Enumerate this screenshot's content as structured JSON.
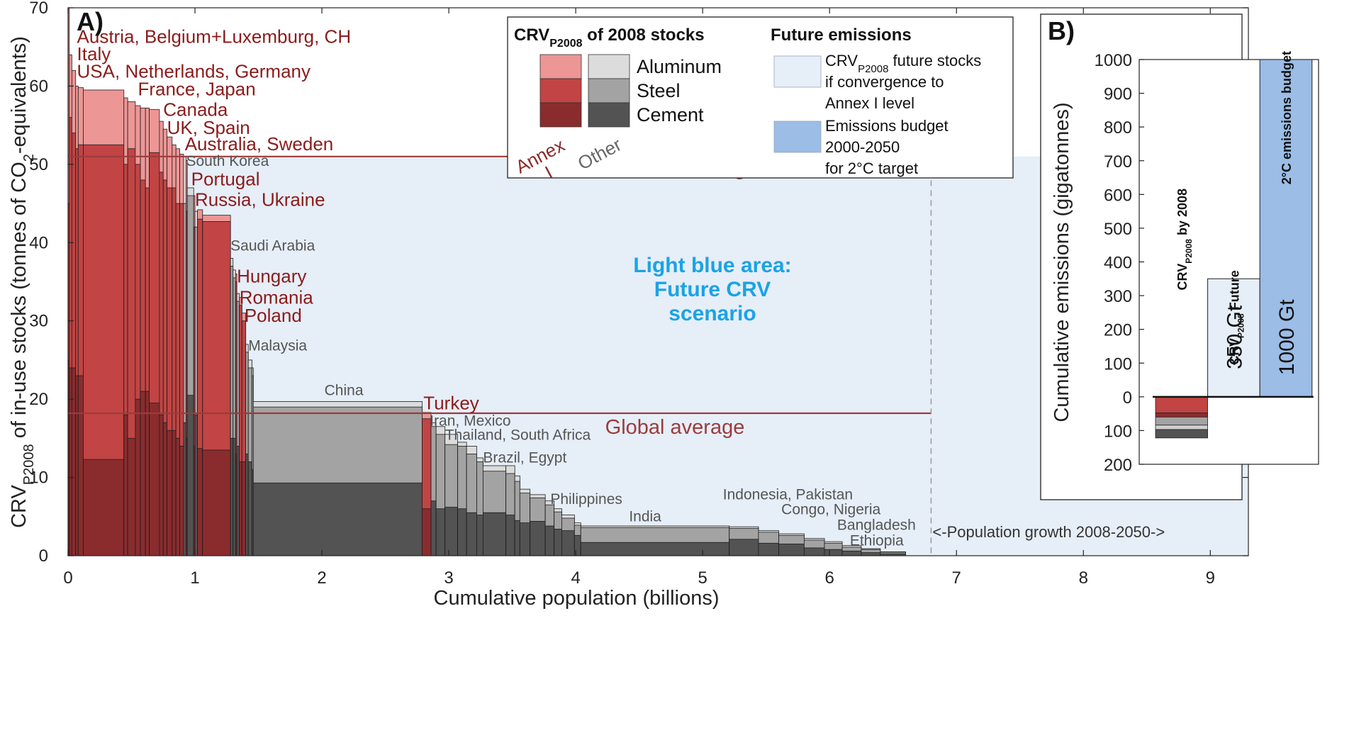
{
  "chart_data": [
    {
      "panel_label": "A)",
      "type": "bar",
      "subtype": "variable-width stacked bars (cumulative population on x)",
      "xlabel": "Cumulative population (billions)",
      "ylabel_parts": [
        "CRV",
        "P2008",
        " of in-use stocks (tonnes of CO",
        "2",
        "-equivalents)"
      ],
      "xlim": [
        0,
        9.3
      ],
      "ylim": [
        0,
        70
      ],
      "xticks": [
        0,
        1,
        2,
        3,
        4,
        5,
        6,
        7,
        8,
        9
      ],
      "yticks": [
        0,
        10,
        20,
        30,
        40,
        50,
        60,
        70
      ],
      "grid": false,
      "legend": {
        "position": "top-right",
        "left_title_parts": [
          "CRV",
          "P2008",
          " of 2008 stocks"
        ],
        "right_title": "Future emissions",
        "materials": [
          "Aluminum",
          "Steel",
          "Cement"
        ],
        "group_labels": [
          {
            "text": "Annex I",
            "lines": [
              "Annex",
              "I"
            ],
            "color": "#8b2a2a"
          },
          {
            "text": "Other",
            "lines": [
              "Other"
            ],
            "color": "#666666"
          }
        ],
        "future_items": [
          {
            "lines_parts": [
              [
                "CRV",
                "P2008",
                " future stocks"
              ],
              [
                "if convergence to"
              ],
              [
                "Annex I level"
              ]
            ],
            "color": "#e6eef8"
          },
          {
            "lines_parts": [
              [
                "Emissions budget"
              ],
              [
                "2000-2050"
              ],
              [
                "for 2°C target"
              ]
            ],
            "color": "#9bbde6"
          }
        ]
      },
      "colors": {
        "annex_aluminum": "#ed9696",
        "annex_steel": "#c24444",
        "annex_cement": "#8a2c2e",
        "other_aluminum": "#dcdcdc",
        "other_steel": "#a3a3a3",
        "other_cement": "#535353",
        "future_area": "#e6eef8",
        "budget": "#9bbde6",
        "average_line": "#9c3b3b",
        "annex_label": "#8b1c1c",
        "other_label": "#555555",
        "scenario_text": "#1aa3e6"
      },
      "reference_lines": [
        {
          "name": "Annex I average",
          "y": 51
        },
        {
          "name": "Global average",
          "y": 18.2
        }
      ],
      "future_area": {
        "x": [
          0,
          9.3
        ],
        "y": [
          0,
          51
        ]
      },
      "future_area_label": {
        "lines": [
          "Light blue area:",
          "Future CRV",
          "scenario"
        ]
      },
      "population_growth_marker": {
        "x": 6.8,
        "label": "<-Population growth 2008-2050->"
      },
      "country_bars": [
        {
          "group": "annex",
          "x0": 0.0,
          "x1": 0.01,
          "aluminum": 70,
          "steel": 45,
          "cement": 25
        },
        {
          "group": "annex",
          "x0": 0.01,
          "x1": 0.03,
          "aluminum": 64,
          "steel": 56,
          "cement": 24
        },
        {
          "group": "annex",
          "x0": 0.03,
          "x1": 0.06,
          "aluminum": 62,
          "steel": 54,
          "cement": 24
        },
        {
          "group": "annex",
          "x0": 0.06,
          "x1": 0.08,
          "aluminum": 60,
          "steel": 52,
          "cement": 23
        },
        {
          "group": "annex",
          "x0": 0.08,
          "x1": 0.12,
          "aluminum": 59.8,
          "steel": 52.5,
          "cement": 23
        },
        {
          "group": "annex",
          "x0": 0.12,
          "x1": 0.44,
          "aluminum": 59.5,
          "steel": 52.5,
          "cement": 12.3
        },
        {
          "group": "annex",
          "x0": 0.44,
          "x1": 0.47,
          "aluminum": 58.5,
          "steel": 50,
          "cement": 18
        },
        {
          "group": "annex",
          "x0": 0.47,
          "x1": 0.53,
          "aluminum": 58,
          "steel": 52,
          "cement": 15
        },
        {
          "group": "annex",
          "x0": 0.53,
          "x1": 0.57,
          "aluminum": 57.5,
          "steel": 50,
          "cement": 20
        },
        {
          "group": "annex",
          "x0": 0.57,
          "x1": 0.61,
          "aluminum": 57.2,
          "steel": 48,
          "cement": 21
        },
        {
          "group": "annex",
          "x0": 0.61,
          "x1": 0.64,
          "aluminum": 57.2,
          "steel": 47,
          "cement": 21
        },
        {
          "group": "annex",
          "x0": 0.64,
          "x1": 0.72,
          "aluminum": 57,
          "steel": 51.5,
          "cement": 19.5
        },
        {
          "group": "annex",
          "x0": 0.72,
          "x1": 0.75,
          "aluminum": 55.5,
          "steel": 49,
          "cement": 18
        },
        {
          "group": "annex",
          "x0": 0.75,
          "x1": 0.78,
          "aluminum": 54.5,
          "steel": 48,
          "cement": 17
        },
        {
          "group": "annex",
          "x0": 0.78,
          "x1": 0.82,
          "aluminum": 53.5,
          "steel": 47,
          "cement": 16
        },
        {
          "group": "annex",
          "x0": 0.82,
          "x1": 0.85,
          "aluminum": 52.5,
          "steel": 47,
          "cement": 16
        },
        {
          "group": "annex",
          "x0": 0.85,
          "x1": 0.88,
          "aluminum": 52,
          "steel": 45,
          "cement": 15
        },
        {
          "group": "annex",
          "x0": 0.88,
          "x1": 0.91,
          "aluminum": 51.3,
          "steel": 45,
          "cement": 14
        },
        {
          "group": "other",
          "x0": 0.91,
          "x1": 0.93,
          "aluminum": 51,
          "steel": 45,
          "cement": 17
        },
        {
          "group": "annex",
          "x0": 0.93,
          "x1": 0.94,
          "aluminum": 50.5,
          "steel": 44,
          "cement": 15
        },
        {
          "group": "other",
          "x0": 0.94,
          "x1": 0.99,
          "aluminum": 47,
          "steel": 46,
          "cement": 20.5
        },
        {
          "group": "annex",
          "x0": 0.99,
          "x1": 1.0,
          "aluminum": 46,
          "steel": 42,
          "cement": 14
        },
        {
          "group": "other",
          "x0": 1.0,
          "x1": 1.02,
          "aluminum": 44,
          "steel": 42,
          "cement": 18
        },
        {
          "group": "annex",
          "x0": 1.02,
          "x1": 1.06,
          "aluminum": 44.2,
          "steel": 43,
          "cement": 13.7
        },
        {
          "group": "annex",
          "x0": 1.06,
          "x1": 1.28,
          "aluminum": 43.5,
          "steel": 42.7,
          "cement": 13.5
        },
        {
          "group": "other",
          "x0": 1.28,
          "x1": 1.3,
          "aluminum": 38,
          "steel": 37,
          "cement": 15
        },
        {
          "group": "other",
          "x0": 1.3,
          "x1": 1.32,
          "aluminum": 36.5,
          "steel": 35.5,
          "cement": 15
        },
        {
          "group": "annex",
          "x0": 1.32,
          "x1": 1.33,
          "aluminum": 36,
          "steel": 35,
          "cement": 13
        },
        {
          "group": "other",
          "x0": 1.33,
          "x1": 1.35,
          "aluminum": 33.5,
          "steel": 32.5,
          "cement": 14
        },
        {
          "group": "annex",
          "x0": 1.35,
          "x1": 1.37,
          "aluminum": 33,
          "steel": 32,
          "cement": 12
        },
        {
          "group": "annex",
          "x0": 1.37,
          "x1": 1.4,
          "aluminum": 31,
          "steel": 30,
          "cement": 12
        },
        {
          "group": "other",
          "x0": 1.4,
          "x1": 1.42,
          "aluminum": 27,
          "steel": 26,
          "cement": 13
        },
        {
          "group": "other",
          "x0": 1.42,
          "x1": 1.45,
          "aluminum": 25,
          "steel": 24,
          "cement": 12
        },
        {
          "group": "other",
          "x0": 1.45,
          "x1": 1.46,
          "aluminum": 24,
          "steel": 23,
          "cement": 11
        },
        {
          "group": "other",
          "x0": 1.46,
          "x1": 2.79,
          "aluminum": 19.7,
          "steel": 19,
          "cement": 9.3
        },
        {
          "group": "annex",
          "x0": 2.79,
          "x1": 2.86,
          "aluminum": 18.3,
          "steel": 17.5,
          "cement": 6
        },
        {
          "group": "other",
          "x0": 2.86,
          "x1": 2.9,
          "aluminum": 17,
          "steel": 16.5,
          "cement": 7
        },
        {
          "group": "other",
          "x0": 2.9,
          "x1": 2.97,
          "aluminum": 16.5,
          "steel": 15.5,
          "cement": 6
        },
        {
          "group": "other",
          "x0": 2.97,
          "x1": 3.07,
          "aluminum": 15.5,
          "steel": 14.2,
          "cement": 6.2
        },
        {
          "group": "other",
          "x0": 3.07,
          "x1": 3.14,
          "aluminum": 14.5,
          "steel": 14,
          "cement": 6
        },
        {
          "group": "other",
          "x0": 3.14,
          "x1": 3.22,
          "aluminum": 14,
          "steel": 13,
          "cement": 5.5
        },
        {
          "group": "other",
          "x0": 3.22,
          "x1": 3.27,
          "aluminum": 12.5,
          "steel": 12,
          "cement": 5.2
        },
        {
          "group": "other",
          "x0": 3.27,
          "x1": 3.45,
          "aluminum": 11.5,
          "steel": 10.8,
          "cement": 5.5
        },
        {
          "group": "other",
          "x0": 3.45,
          "x1": 3.52,
          "aluminum": 11.5,
          "steel": 10.5,
          "cement": 5.2
        },
        {
          "group": "other",
          "x0": 3.52,
          "x1": 3.56,
          "aluminum": 10.2,
          "steel": 9.5,
          "cement": 4.5
        },
        {
          "group": "other",
          "x0": 3.56,
          "x1": 3.64,
          "aluminum": 8.5,
          "steel": 8,
          "cement": 4.2
        },
        {
          "group": "other",
          "x0": 3.64,
          "x1": 3.76,
          "aluminum": 7.8,
          "steel": 7.4,
          "cement": 4.4
        },
        {
          "group": "other",
          "x0": 3.76,
          "x1": 3.83,
          "aluminum": 7,
          "steel": 6.5,
          "cement": 3.8
        },
        {
          "group": "other",
          "x0": 3.83,
          "x1": 3.89,
          "aluminum": 6,
          "steel": 5.6,
          "cement": 3.4
        },
        {
          "group": "other",
          "x0": 3.89,
          "x1": 3.99,
          "aluminum": 5.2,
          "steel": 4.8,
          "cement": 3.2
        },
        {
          "group": "other",
          "x0": 3.99,
          "x1": 4.04,
          "aluminum": 4.2,
          "steel": 3.9,
          "cement": 2.6
        },
        {
          "group": "other",
          "x0": 4.04,
          "x1": 5.21,
          "aluminum": 3.8,
          "steel": 3.6,
          "cement": 1.7
        },
        {
          "group": "other",
          "x0": 5.21,
          "x1": 5.44,
          "aluminum": 3.7,
          "steel": 3.5,
          "cement": 2.1
        },
        {
          "group": "other",
          "x0": 5.44,
          "x1": 5.6,
          "aluminum": 3.2,
          "steel": 3,
          "cement": 1.6
        },
        {
          "group": "other",
          "x0": 5.6,
          "x1": 5.8,
          "aluminum": 2.8,
          "steel": 2.6,
          "cement": 1.5
        },
        {
          "group": "other",
          "x0": 5.8,
          "x1": 5.96,
          "aluminum": 2.2,
          "steel": 2.0,
          "cement": 1.0
        },
        {
          "group": "other",
          "x0": 5.96,
          "x1": 6.1,
          "aluminum": 1.8,
          "steel": 1.6,
          "cement": 0.8
        },
        {
          "group": "other",
          "x0": 6.1,
          "x1": 6.25,
          "aluminum": 1.3,
          "steel": 1.1,
          "cement": 0.6
        },
        {
          "group": "other",
          "x0": 6.25,
          "x1": 6.4,
          "aluminum": 0.9,
          "steel": 0.8,
          "cement": 0.4
        },
        {
          "group": "other",
          "x0": 6.4,
          "x1": 6.6,
          "aluminum": 0.5,
          "steel": 0.45,
          "cement": 0.25
        }
      ],
      "country_labels": [
        {
          "text": "Austria, Belgium+Luxemburg, CH",
          "group": "annex",
          "x": 0.07,
          "y": 65.5,
          "size": "large"
        },
        {
          "text": "Italy",
          "group": "annex",
          "x": 0.07,
          "y": 63.3,
          "size": "large"
        },
        {
          "text": "USA, Netherlands, Germany",
          "group": "annex",
          "x": 0.07,
          "y": 61.1,
          "size": "large"
        },
        {
          "text": "France, Japan",
          "group": "annex",
          "x": 0.55,
          "y": 58.8,
          "size": "large"
        },
        {
          "text": "Canada",
          "group": "annex",
          "x": 0.75,
          "y": 56.2,
          "size": "large"
        },
        {
          "text": "UK, Spain",
          "group": "annex",
          "x": 0.78,
          "y": 53.9,
          "size": "large"
        },
        {
          "text": "Australia, Sweden",
          "group": "annex",
          "x": 0.92,
          "y": 51.8,
          "size": "large"
        },
        {
          "text": "South Korea",
          "group": "other",
          "x": 0.93,
          "y": 49.8,
          "size": "small"
        },
        {
          "text": "Portugal",
          "group": "annex",
          "x": 0.97,
          "y": 47.3,
          "size": "large"
        },
        {
          "text": "Russia, Ukraine",
          "group": "annex",
          "x": 1.0,
          "y": 44.7,
          "size": "large"
        },
        {
          "text": "Saudi Arabia",
          "group": "other",
          "x": 1.28,
          "y": 39.0,
          "size": "small"
        },
        {
          "text": "Hungary",
          "group": "annex",
          "x": 1.33,
          "y": 34.9,
          "size": "large"
        },
        {
          "text": "Romania",
          "group": "annex",
          "x": 1.35,
          "y": 32.2,
          "size": "large"
        },
        {
          "text": "Poland",
          "group": "annex",
          "x": 1.39,
          "y": 29.9,
          "size": "large"
        },
        {
          "text": "Malaysia",
          "group": "other",
          "x": 1.42,
          "y": 26.2,
          "size": "small"
        },
        {
          "text": "China",
          "group": "other",
          "x": 2.02,
          "y": 20.5,
          "size": "small"
        },
        {
          "text": "Turkey",
          "group": "annex",
          "x": 2.8,
          "y": 18.7,
          "size": "large"
        },
        {
          "text": "Iran, Mexico",
          "group": "other",
          "x": 2.85,
          "y": 16.6,
          "size": "small"
        },
        {
          "text": "Thailand, South Africa",
          "group": "other",
          "x": 2.97,
          "y": 14.8,
          "size": "small"
        },
        {
          "text": "Brazil, Egypt",
          "group": "other",
          "x": 3.27,
          "y": 11.9,
          "size": "small"
        },
        {
          "text": "Philippines",
          "group": "other",
          "x": 3.8,
          "y": 6.6,
          "size": "small"
        },
        {
          "text": "India",
          "group": "other",
          "x": 4.42,
          "y": 4.4,
          "size": "small"
        },
        {
          "text": "Indonesia, Pakistan",
          "group": "other",
          "x": 5.16,
          "y": 7.2,
          "size": "small"
        },
        {
          "text": "Congo, Nigeria",
          "group": "other",
          "x": 5.62,
          "y": 5.3,
          "size": "small"
        },
        {
          "text": "Bangladesh",
          "group": "other",
          "x": 6.06,
          "y": 3.3,
          "size": "small"
        },
        {
          "text": "Ethiopia",
          "group": "other",
          "x": 6.16,
          "y": 1.3,
          "size": "small"
        }
      ]
    },
    {
      "panel_label": "B)",
      "type": "bar",
      "ylabel": "Cumulative emissions (gigatonnes)",
      "ylim": [
        -200,
        1000
      ],
      "yticks": [
        -200,
        -100,
        0,
        100,
        200,
        300,
        400,
        500,
        600,
        700,
        800,
        900,
        1000
      ],
      "ytick_labels": [
        "200",
        "100",
        "0",
        "100",
        "200",
        "300",
        "400",
        "500",
        "600",
        "700",
        "800",
        "900",
        "1000"
      ],
      "xlim": [
        7.9,
        9.0
      ],
      "bars": [
        {
          "category_parts": [
            "CRV",
            "P2008",
            " by 2008"
          ],
          "x0": 8.0,
          "x1": 8.32,
          "stack_down": [
            {
              "material": "Cement (Annex I)",
              "value": 48,
              "color": "#c24444"
            },
            {
              "material": "Steel (Annex I)",
              "value": 12,
              "color": "#8a2c2e"
            },
            {
              "material": "Aluminum (Other)",
              "value": 24,
              "color": "#a3a3a3"
            },
            {
              "material": "Steel (Other)",
              "value": 13,
              "color": "#d0d0d0"
            },
            {
              "material": "Cement (Other)",
              "value": 25,
              "color": "#535353"
            }
          ],
          "total": -122
        },
        {
          "category_parts": [
            "CRV",
            "P2008",
            " Future"
          ],
          "x0": 8.32,
          "x1": 8.64,
          "value": 350,
          "color": "#e6eef8",
          "label": "350 Gt"
        },
        {
          "category_parts": [
            "2°C emissions budget"
          ],
          "x0": 8.64,
          "x1": 8.96,
          "value": 1000,
          "color": "#9bbde6",
          "label": "1000 Gt"
        }
      ]
    }
  ]
}
